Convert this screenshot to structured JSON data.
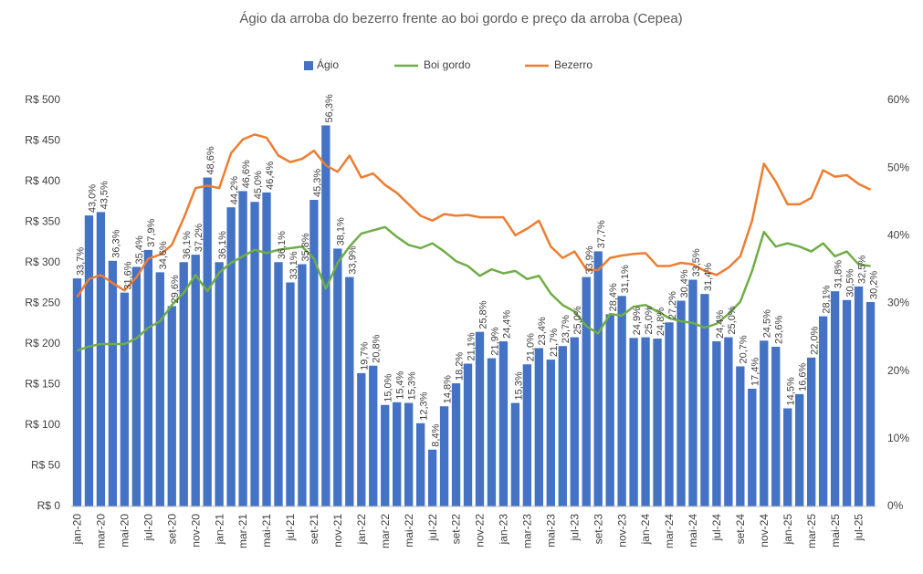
{
  "chart_data": {
    "type": "bar_line",
    "title": "Ágio da arroba do bezerro frente ao boi gordo e preço da arroba (Cepea)",
    "categories": [
      "jan-20",
      null,
      "mar-20",
      null,
      "mai-20",
      null,
      "jul-20",
      null,
      "set-20",
      null,
      "nov-20",
      null,
      "jan-21",
      null,
      "mar-21",
      null,
      "mai-21",
      null,
      "jul-21",
      null,
      "set-21",
      null,
      "nov-21",
      null,
      "jan-22",
      null,
      "mar-22",
      null,
      "mai-22",
      null,
      "jul-22",
      null,
      "set-22",
      null,
      "nov-22",
      null,
      "jan-23",
      null,
      "mar-23",
      null,
      "mai-23",
      null,
      "jul-23",
      null,
      "set-23",
      null,
      "nov-23",
      null,
      "jan-24",
      null,
      "mar-24",
      null,
      "mai-24",
      null,
      "jul-24",
      null,
      "set-24",
      null,
      "nov-24",
      null,
      "jan-25",
      null,
      "mar-25",
      null,
      "mai-25",
      null,
      "jul-25",
      null
    ],
    "series": [
      {
        "name": "Ágio",
        "type": "bar",
        "axis": "y2",
        "color": "#4472c4",
        "values": [
          33.7,
          43.0,
          43.5,
          36.3,
          31.6,
          35.4,
          37.9,
          34.6,
          29.6,
          36.1,
          37.2,
          48.6,
          36.1,
          44.2,
          46.6,
          45.0,
          46.4,
          36.1,
          33.1,
          35.8,
          45.3,
          56.3,
          38.1,
          33.9,
          19.7,
          20.8,
          15.0,
          15.4,
          15.3,
          12.3,
          8.4,
          14.8,
          18.2,
          21.1,
          25.8,
          21.9,
          24.4,
          15.3,
          21.0,
          23.4,
          21.7,
          23.7,
          25.0,
          33.9,
          37.7,
          28.4,
          31.1,
          24.9,
          25.0,
          24.8,
          27.2,
          30.4,
          33.5,
          31.4,
          24.4,
          25.0,
          20.7,
          17.4,
          24.5,
          23.6,
          14.5,
          16.6,
          22.0,
          28.1,
          31.8,
          30.5,
          32.5,
          30.2
        ],
        "value_labels": [
          "33,7%",
          "43,0%",
          "43,5%",
          "36,3%",
          "31,6%",
          "35,4%",
          "37,9%",
          "34,6%",
          "29,6%",
          "36,1%",
          "37,2%",
          "48,6%",
          "36,1%",
          "44,2%",
          "46,6%",
          "45,0%",
          "46,4%",
          "36,1%",
          "33,1%",
          "35,8%",
          "45,3%",
          "56,3%",
          "38,1%",
          "33,9%",
          "19,7%",
          "20,8%",
          "15,0%",
          "15,4%",
          "15,3%",
          "12,3%",
          "8,4%",
          "14,8%",
          "18,2%",
          "21,1%",
          "25,8%",
          "21,9%",
          "24,4%",
          "15,3%",
          "21,0%",
          "23,4%",
          "21,7%",
          "23,7%",
          "25,0%",
          "33,9%",
          "37,7%",
          "28,4%",
          "31,1%",
          "24,9%",
          "25,0%",
          "24,8%",
          "27,2%",
          "30,4%",
          "33,5%",
          "31,4%",
          "24,4%",
          "25,0%",
          "20,7%",
          "17,4%",
          "24,5%",
          "23,6%",
          "14,5%",
          "16,6%",
          "22,0%",
          "28,1%",
          "31,8%",
          "30,5%",
          "32,5%",
          "30,2%"
        ]
      },
      {
        "name": "Boi gordo",
        "type": "line",
        "color": "#70ad47",
        "values": [
          192,
          197,
          200,
          200,
          200,
          207,
          220,
          228,
          248,
          263,
          285,
          265,
          288,
          300,
          308,
          316,
          312,
          316,
          318,
          320,
          305,
          268,
          300,
          320,
          336,
          340,
          344,
          332,
          322,
          318,
          324,
          314,
          302,
          296,
          284,
          292,
          287,
          290,
          280,
          284,
          262,
          248,
          240,
          222,
          213,
          237,
          235,
          246,
          248,
          240,
          232,
          228,
          226,
          220,
          225,
          237,
          252,
          290,
          338,
          320,
          324,
          320,
          314,
          324,
          308,
          314,
          298,
          296
        ]
      },
      {
        "name": "Bezerro",
        "type": "line",
        "color": "#ed7d31",
        "values": [
          258,
          280,
          285,
          275,
          266,
          282,
          305,
          310,
          322,
          355,
          392,
          395,
          392,
          435,
          452,
          458,
          454,
          432,
          424,
          428,
          438,
          420,
          412,
          432,
          405,
          410,
          396,
          386,
          372,
          358,
          352,
          360,
          358,
          359,
          356,
          356,
          356,
          334,
          342,
          352,
          320,
          306,
          314,
          292,
          291,
          306,
          309,
          311,
          312,
          296,
          296,
          300,
          298,
          290,
          285,
          294,
          308,
          352,
          422,
          400,
          372,
          372,
          380,
          414,
          406,
          408,
          397,
          390
        ]
      }
    ],
    "ylim": [
      0,
      500
    ],
    "yticks": [
      {
        "value": 0,
        "label": "R$ 0"
      },
      {
        "value": 50,
        "label": "R$ 50"
      },
      {
        "value": 100,
        "label": "R$ 100"
      },
      {
        "value": 150,
        "label": "R$ 150"
      },
      {
        "value": 200,
        "label": "R$ 200"
      },
      {
        "value": 250,
        "label": "R$ 250"
      },
      {
        "value": 300,
        "label": "R$ 300"
      },
      {
        "value": 350,
        "label": "R$ 350"
      },
      {
        "value": 400,
        "label": "R$ 400"
      },
      {
        "value": 450,
        "label": "R$ 450"
      },
      {
        "value": 500,
        "label": "R$ 500"
      }
    ],
    "y2lim": [
      0,
      60
    ],
    "y2ticks": [
      {
        "value": 0,
        "label": "0%"
      },
      {
        "value": 10,
        "label": "10%"
      },
      {
        "value": 20,
        "label": "20%"
      },
      {
        "value": 30,
        "label": "30%"
      },
      {
        "value": 40,
        "label": "40%"
      },
      {
        "value": 50,
        "label": "50%"
      },
      {
        "value": 60,
        "label": "60%"
      }
    ],
    "grid": false,
    "legend": "top"
  }
}
